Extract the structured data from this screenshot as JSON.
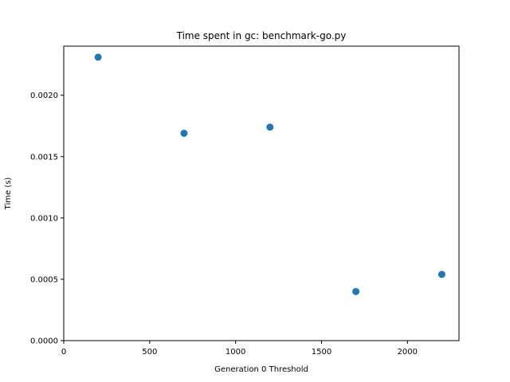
{
  "chart_data": {
    "type": "scatter",
    "title": "Time spent in gc: benchmark-go.py",
    "xlabel": "Generation 0 Threshold",
    "ylabel": "Time (s)",
    "xlim": [
      0,
      2300
    ],
    "ylim": [
      0,
      0.0024
    ],
    "x_ticks": [
      0,
      500,
      1000,
      1500,
      2000
    ],
    "x_tick_labels": [
      "0",
      "500",
      "1000",
      "1500",
      "2000"
    ],
    "y_ticks": [
      0,
      0.0005,
      0.001,
      0.0015,
      0.002
    ],
    "y_tick_labels": [
      "0.0000",
      "0.0005",
      "0.0010",
      "0.0015",
      "0.0020"
    ],
    "grid": false,
    "color": "#1f77b4",
    "series": [
      {
        "x": [
          200,
          700,
          1200,
          1700,
          2200
        ],
        "y": [
          0.00231,
          0.00169,
          0.00174,
          0.0004,
          0.00054
        ]
      }
    ]
  }
}
